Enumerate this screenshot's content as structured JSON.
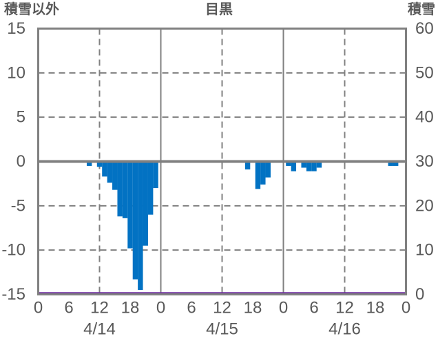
{
  "header": {
    "left_axis_title": "積雪以外",
    "chart_title": "目黒",
    "right_axis_title": "積雪"
  },
  "colors": {
    "bar": "#0272C3",
    "snow_line": "#7030A0",
    "grid": "#808080",
    "text": "#595959",
    "background": "#FFFFFF"
  },
  "chart_data": {
    "type": "bar",
    "title": "目黒",
    "left_axis": {
      "label": "積雪以外",
      "min": -15,
      "max": 15,
      "ticks": [
        15,
        10,
        5,
        0,
        -5,
        -10,
        -15
      ]
    },
    "right_axis": {
      "label": "積雪",
      "min": 0,
      "max": 60,
      "ticks": [
        60,
        50,
        40,
        30,
        20,
        10,
        0
      ]
    },
    "x_axis": {
      "hours_total": 72,
      "tick_interval_hours": 6,
      "hour_tick_labels": [
        "0",
        "6",
        "12",
        "18",
        "0",
        "6",
        "12",
        "18",
        "0",
        "6",
        "12",
        "18",
        "0"
      ],
      "day_labels": [
        "4/14",
        "4/15",
        "4/16"
      ]
    },
    "grid": {
      "h_dashed_at": [
        10,
        5,
        -5,
        -10
      ],
      "v_dashed_at_noon": true,
      "v_solid_at_midnight": true
    },
    "series": [
      {
        "name": "積雪以外",
        "type": "bar",
        "axis": "left",
        "color": "#0272C3",
        "points": [
          {
            "time": "4/14 10:00",
            "hour_index": 10,
            "value": -0.5
          },
          {
            "time": "4/14 12:00",
            "hour_index": 12,
            "value": -0.6
          },
          {
            "time": "4/14 13:00",
            "hour_index": 13,
            "value": -1.7
          },
          {
            "time": "4/14 14:00",
            "hour_index": 14,
            "value": -2.4
          },
          {
            "time": "4/14 15:00",
            "hour_index": 15,
            "value": -3.2
          },
          {
            "time": "4/14 16:00",
            "hour_index": 16,
            "value": -6.2
          },
          {
            "time": "4/14 17:00",
            "hour_index": 17,
            "value": -6.4
          },
          {
            "time": "4/14 18:00",
            "hour_index": 18,
            "value": -9.8
          },
          {
            "time": "4/14 19:00",
            "hour_index": 19,
            "value": -13.3
          },
          {
            "time": "4/14 20:00",
            "hour_index": 20,
            "value": -14.5
          },
          {
            "time": "4/14 21:00",
            "hour_index": 21,
            "value": -9.5
          },
          {
            "time": "4/14 22:00",
            "hour_index": 22,
            "value": -6.0
          },
          {
            "time": "4/14 23:00",
            "hour_index": 23,
            "value": -3.0
          },
          {
            "time": "4/15 17:00",
            "hour_index": 41,
            "value": -0.9
          },
          {
            "time": "4/15 19:00",
            "hour_index": 43,
            "value": -3.1
          },
          {
            "time": "4/15 20:00",
            "hour_index": 44,
            "value": -2.6
          },
          {
            "time": "4/15 21:00",
            "hour_index": 45,
            "value": -1.8
          },
          {
            "time": "4/16 01:00",
            "hour_index": 49,
            "value": -0.5
          },
          {
            "time": "4/16 02:00",
            "hour_index": 50,
            "value": -1.1
          },
          {
            "time": "4/16 04:00",
            "hour_index": 52,
            "value": -0.7
          },
          {
            "time": "4/16 05:00",
            "hour_index": 53,
            "value": -1.1
          },
          {
            "time": "4/16 06:00",
            "hour_index": 54,
            "value": -1.1
          },
          {
            "time": "4/16 07:00",
            "hour_index": 55,
            "value": -0.7
          },
          {
            "time": "4/16 21:00",
            "hour_index": 69,
            "value": -0.5
          },
          {
            "time": "4/16 22:00",
            "hour_index": 70,
            "value": -0.5
          }
        ]
      },
      {
        "name": "積雪",
        "type": "line",
        "axis": "right",
        "color": "#7030A0",
        "constant_value": 0
      }
    ]
  }
}
